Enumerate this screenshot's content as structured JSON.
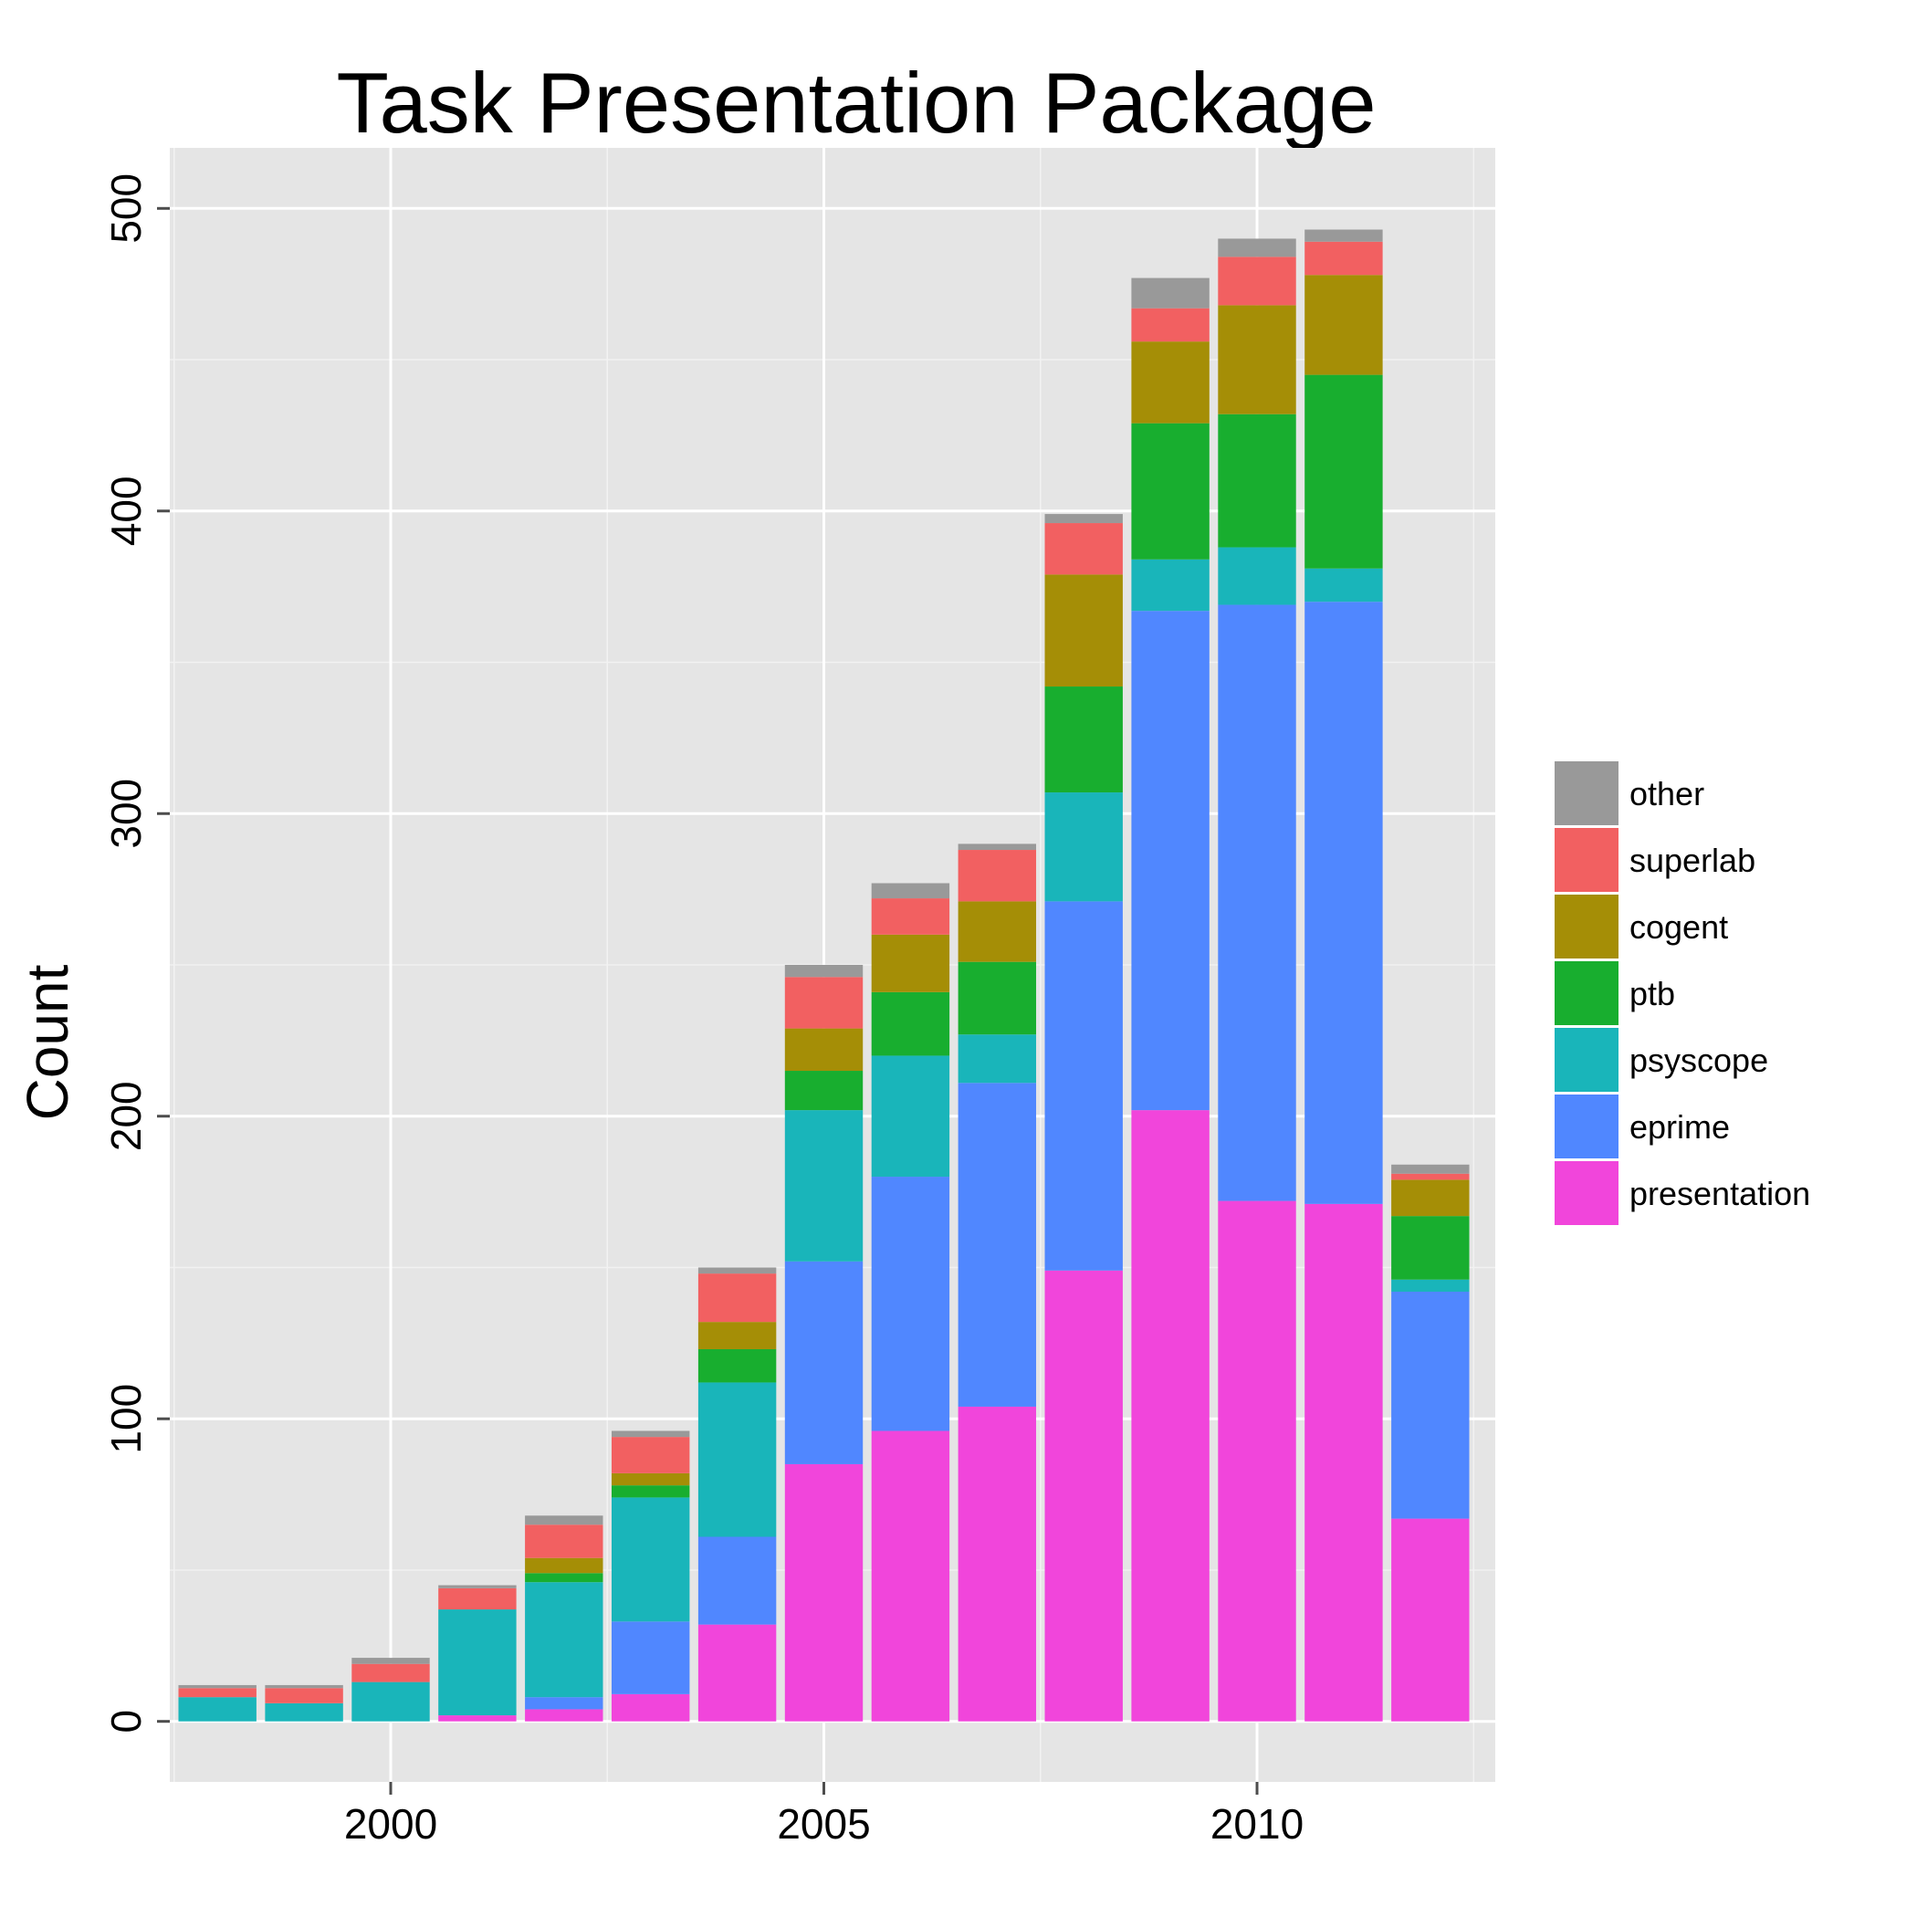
{
  "chart_data": {
    "type": "bar",
    "stacked": true,
    "title": "Task Presentation Package",
    "xlabel": "",
    "ylabel": "Count",
    "x": [
      1998,
      1999,
      2000,
      2001,
      2002,
      2003,
      2004,
      2005,
      2006,
      2007,
      2008,
      2009,
      2010,
      2011,
      2012
    ],
    "xlim": [
      1997.45,
      2012.75
    ],
    "ylim": [
      -20,
      520
    ],
    "xticks": [
      2000,
      2005,
      2010
    ],
    "yticks": [
      0,
      100,
      200,
      300,
      400,
      500
    ],
    "grid": true,
    "legend_position": "right",
    "series": [
      {
        "name": "presentation",
        "color": "#F145DB",
        "values": [
          0,
          0,
          0,
          2,
          4,
          9,
          32,
          85,
          96,
          104,
          149,
          202,
          172,
          171,
          67
        ]
      },
      {
        "name": "eprime",
        "color": "#5087FF",
        "values": [
          0,
          0,
          0,
          0,
          4,
          24,
          29,
          67,
          84,
          107,
          122,
          165,
          197,
          199,
          75
        ]
      },
      {
        "name": "psyscope",
        "color": "#19B5BA",
        "values": [
          8,
          6,
          13,
          35,
          38,
          41,
          51,
          50,
          40,
          16,
          36,
          17,
          19,
          11,
          4
        ]
      },
      {
        "name": "ptb",
        "color": "#18AE2F",
        "values": [
          0,
          0,
          0,
          0,
          3,
          4,
          11,
          13,
          21,
          24,
          35,
          45,
          44,
          64,
          21
        ]
      },
      {
        "name": "cogent",
        "color": "#A58E06",
        "values": [
          0,
          0,
          0,
          0,
          5,
          4,
          9,
          14,
          19,
          20,
          37,
          27,
          36,
          33,
          12
        ]
      },
      {
        "name": "superlab",
        "color": "#F26061",
        "values": [
          3,
          5,
          6,
          7,
          11,
          12,
          16,
          17,
          12,
          17,
          17,
          11,
          16,
          11,
          2
        ]
      },
      {
        "name": "other",
        "color": "#999999",
        "values": [
          1,
          1,
          2,
          1,
          3,
          2,
          2,
          4,
          5,
          2,
          3,
          10,
          6,
          4,
          3
        ]
      }
    ],
    "legend_order": [
      "other",
      "superlab",
      "cogent",
      "ptb",
      "psyscope",
      "eprime",
      "presentation"
    ]
  }
}
